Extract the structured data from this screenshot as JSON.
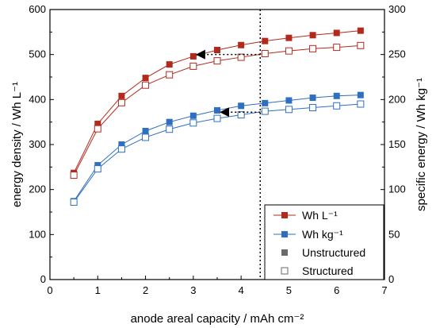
{
  "chart_data": {
    "type": "line",
    "xlabel": "anode areal capacity / mAh cm⁻²",
    "ylabel_left": "energy density  / Wh L⁻¹",
    "ylabel_right": "specific energy / Wh kg⁻¹",
    "xlim": [
      0,
      7
    ],
    "ylim_left": [
      0,
      600
    ],
    "ylim_right": [
      0,
      300
    ],
    "x_ticks": [
      "0",
      "1",
      "2",
      "3",
      "4",
      "5",
      "6",
      "7"
    ],
    "y_ticks_left": [
      "0",
      "100",
      "200",
      "300",
      "400",
      "500",
      "600"
    ],
    "y_ticks_right": [
      "0",
      "50",
      "100",
      "150",
      "200",
      "250",
      "300"
    ],
    "grid": false,
    "legend_position": "bottom-right",
    "colors": {
      "red": "#b22a1e",
      "blue": "#2f6fc0",
      "gray": "#6a6a6a"
    },
    "vline_x": 4.4,
    "series": [
      {
        "name": "Wh L⁻¹ Unstructured",
        "axis": "left",
        "color": "#b22a1e",
        "filled": true,
        "x": [
          0.5,
          1,
          1.5,
          2,
          2.5,
          3,
          3.5,
          4,
          4.5,
          5,
          5.5,
          6,
          6.5
        ],
        "values": [
          237,
          346,
          408,
          448,
          478,
          496,
          510,
          521,
          530,
          537,
          543,
          548,
          553
        ]
      },
      {
        "name": "Wh L⁻¹ Structured",
        "axis": "left",
        "color": "#b22a1e",
        "filled": false,
        "x": [
          0.5,
          1,
          1.5,
          2,
          2.5,
          3,
          3.5,
          4,
          4.5,
          5,
          5.5,
          6,
          6.5
        ],
        "values": [
          232,
          335,
          393,
          432,
          455,
          474,
          486,
          494,
          502,
          508,
          513,
          516,
          520
        ]
      },
      {
        "name": "Wh kg⁻¹ Unstructured",
        "axis": "right",
        "color": "#2f6fc0",
        "filled": true,
        "x": [
          0.5,
          1,
          1.5,
          2,
          2.5,
          3,
          3.5,
          4,
          4.5,
          5,
          5.5,
          6,
          6.5
        ],
        "values": [
          87,
          127,
          150,
          165,
          175,
          182,
          188,
          193,
          196,
          199,
          202,
          204,
          205
        ]
      },
      {
        "name": "Wh kg⁻¹ Structured",
        "axis": "right",
        "color": "#2f6fc0",
        "filled": false,
        "x": [
          0.5,
          1,
          1.5,
          2,
          2.5,
          3,
          3.5,
          4,
          4.5,
          5,
          5.5,
          6,
          6.5
        ],
        "values": [
          86,
          123,
          145,
          158,
          167,
          174,
          179,
          183,
          187,
          189,
          191,
          193,
          195
        ]
      }
    ],
    "arrows": [
      {
        "axis": "left",
        "from_x": 4.4,
        "to_x": 3.1,
        "y": 500
      },
      {
        "axis": "left",
        "from_x": 4.4,
        "to_x": 3.6,
        "y": 372
      }
    ],
    "legend": [
      {
        "label": "Wh L⁻¹",
        "style": "red-filled-line"
      },
      {
        "label": "Wh kg⁻¹",
        "style": "blue-filled-line"
      },
      {
        "label": "Unstructured",
        "style": "gray-filled-marker"
      },
      {
        "label": "Structured",
        "style": "gray-open-marker"
      }
    ]
  }
}
